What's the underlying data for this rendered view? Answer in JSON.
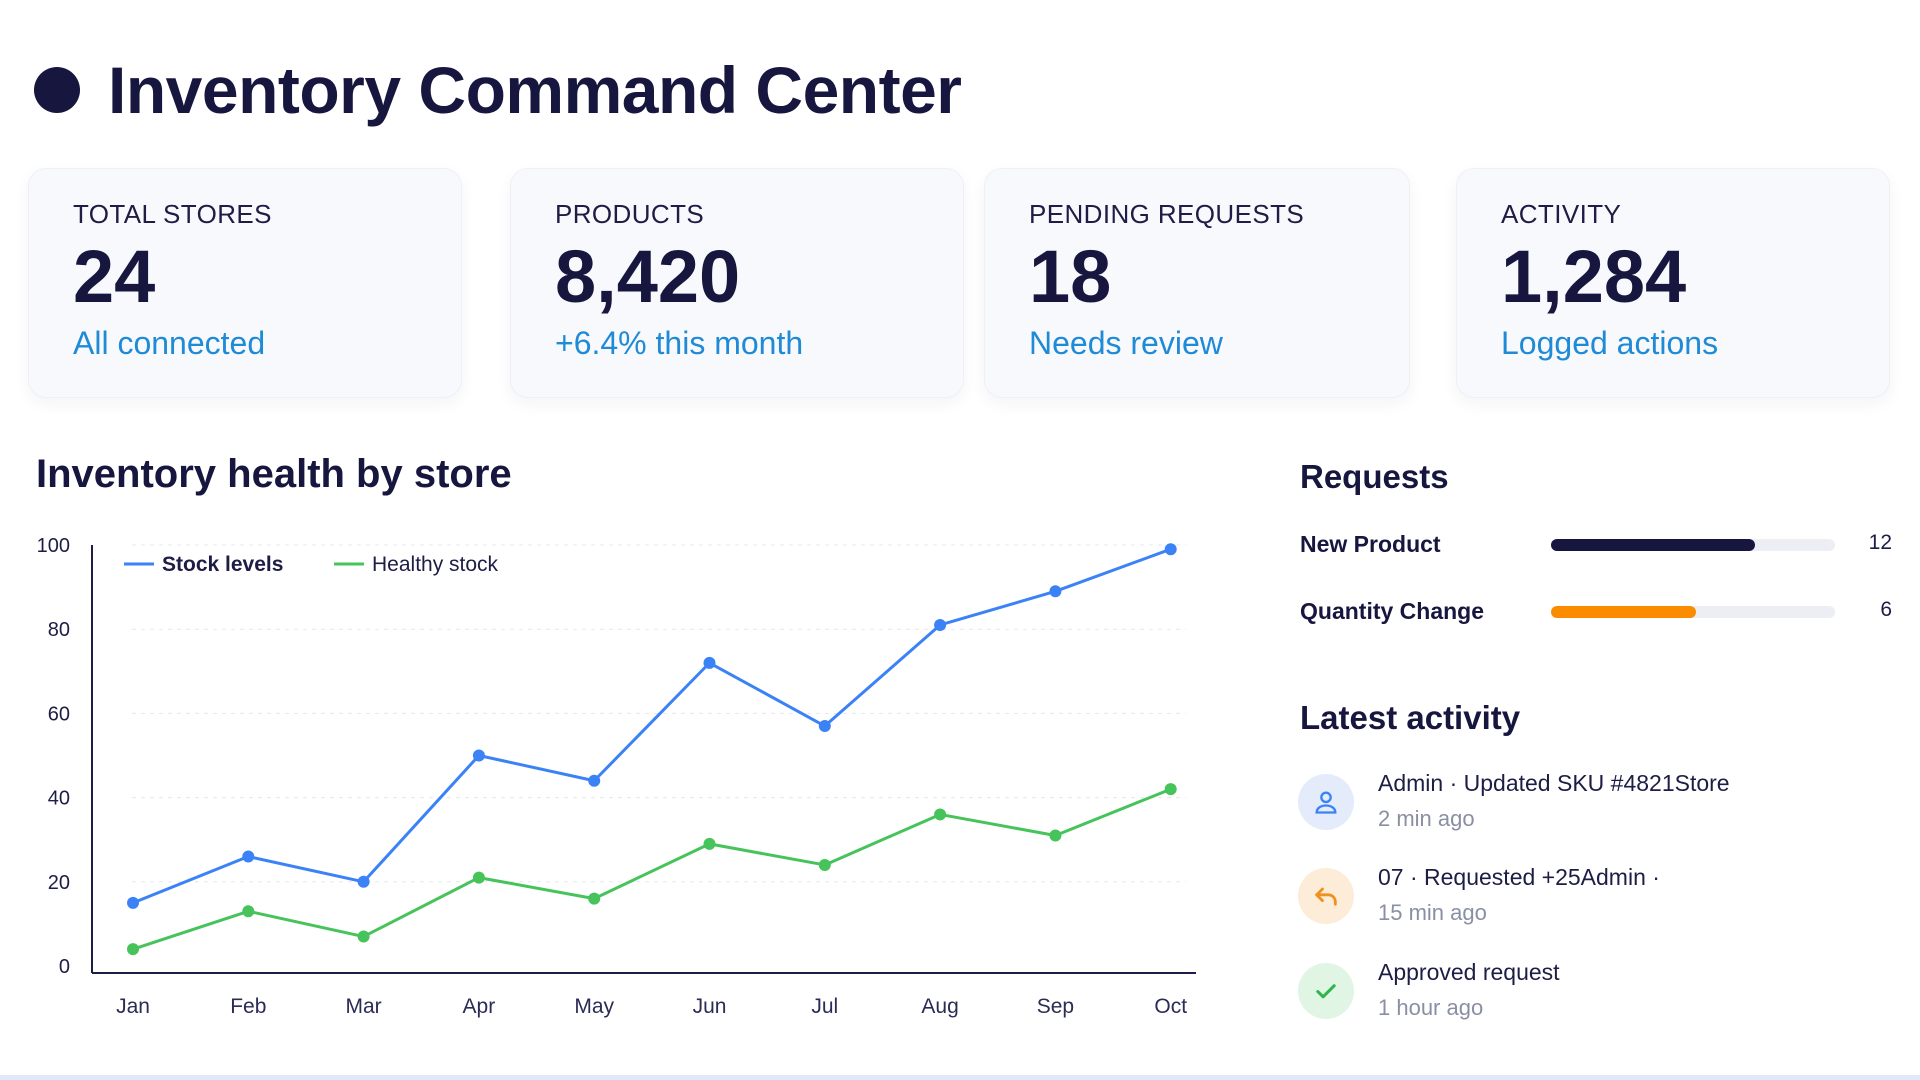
{
  "page": {
    "title": "Inventory Command Center"
  },
  "kpis": [
    {
      "label": "TOTAL STORES",
      "value": "24",
      "sub": "All connected"
    },
    {
      "label": "PRODUCTS",
      "value": "8,420",
      "sub": "+6.4% this month"
    },
    {
      "label": "PENDING REQUESTS",
      "value": "18",
      "sub": "Needs review"
    },
    {
      "label": "ACTIVITY",
      "value": "1,284",
      "sub": "Logged actions"
    }
  ],
  "chart": {
    "title": "Inventory health by store"
  },
  "chart_data": {
    "type": "line",
    "title": "Inventory health by store",
    "x": [
      "Jan",
      "Feb",
      "Mar",
      "Apr",
      "May",
      "Jun",
      "Jul",
      "Aug",
      "Sep",
      "Oct"
    ],
    "ylim": [
      0,
      100
    ],
    "yticks": [
      0,
      20,
      40,
      60,
      80,
      100
    ],
    "grid": true,
    "legend_position": "top-left",
    "series": [
      {
        "name": "Stock levels",
        "color": "#3b82f6",
        "values": [
          15,
          26,
          20,
          50,
          44,
          72,
          57,
          81,
          89,
          99
        ]
      },
      {
        "name": "Healthy stock",
        "color": "#46c35a",
        "values": [
          4,
          13,
          7,
          21,
          16,
          29,
          24,
          36,
          31,
          42
        ]
      }
    ]
  },
  "requests": {
    "title": "Requests",
    "items": [
      {
        "label": "New Product",
        "count": "12",
        "progress": 0.72,
        "color": "#16163f"
      },
      {
        "label": "Quantity Change",
        "count": "6",
        "progress": 0.51,
        "color": "#fb8c00"
      }
    ]
  },
  "activity": {
    "title": "Latest activity",
    "items": [
      {
        "title": "Admin · Updated SKU #4821Store",
        "time": "2 min ago",
        "icon": "user-icon",
        "icon_color": "#3b82f6",
        "icon_bg": "#e4ecfb"
      },
      {
        "title": "07 · Requested +25Admin ·",
        "time": "15 min ago",
        "icon": "reply-arrow-icon",
        "icon_color": "#f0901e",
        "icon_bg": "#fdecd8"
      },
      {
        "title": "Approved request",
        "time": "1 hour ago",
        "icon": "check-icon",
        "icon_color": "#2fb54c",
        "icon_bg": "#e0f5e4"
      }
    ]
  }
}
